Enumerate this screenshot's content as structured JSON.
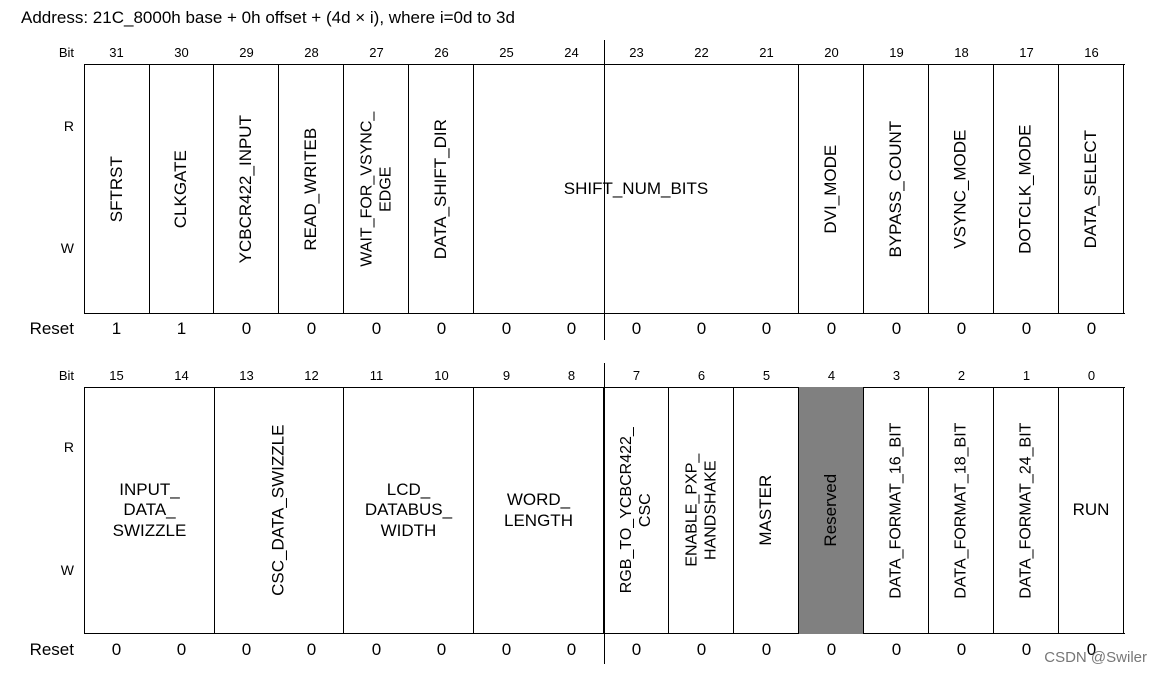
{
  "address": "Address: 21C_8000h base + 0h offset + (4d × i), where i=0d to 3d",
  "labels": {
    "bit": "Bit",
    "r": "R",
    "w": "W",
    "reset": "Reset"
  },
  "top": {
    "bits": [
      "31",
      "30",
      "29",
      "28",
      "27",
      "26",
      "25",
      "24",
      "23",
      "22",
      "21",
      "20",
      "19",
      "18",
      "17",
      "16"
    ],
    "fields": [
      {
        "name": "SFTRST",
        "span": 1,
        "rotated": true
      },
      {
        "name": "CLKGATE",
        "span": 1,
        "rotated": true
      },
      {
        "name": "YCBCR422_INPUT",
        "span": 1,
        "rotated": true
      },
      {
        "name": "READ_WRITEB",
        "span": 1,
        "rotated": true
      },
      {
        "name": "WAIT_FOR_VSYNC_\nEDGE",
        "span": 1,
        "rotated": true
      },
      {
        "name": "DATA_SHIFT_DIR",
        "span": 1,
        "rotated": true
      },
      {
        "name": "SHIFT_NUM_BITS",
        "span": 5,
        "rotated": false
      },
      {
        "name": "DVI_MODE",
        "span": 1,
        "rotated": true
      },
      {
        "name": "BYPASS_COUNT",
        "span": 1,
        "rotated": true
      },
      {
        "name": "VSYNC_MODE",
        "span": 1,
        "rotated": true
      },
      {
        "name": "DOTCLK_MODE",
        "span": 1,
        "rotated": true
      },
      {
        "name": "DATA_SELECT",
        "span": 1,
        "rotated": true
      }
    ],
    "reset": [
      "1",
      "1",
      "0",
      "0",
      "0",
      "0",
      "0",
      "0",
      "0",
      "0",
      "0",
      "0",
      "0",
      "0",
      "0",
      "0"
    ]
  },
  "bottom": {
    "bits": [
      "15",
      "14",
      "13",
      "12",
      "11",
      "10",
      "9",
      "8",
      "7",
      "6",
      "5",
      "4",
      "3",
      "2",
      "1",
      "0"
    ],
    "fields": [
      {
        "name": "INPUT_\nDATA_\nSWIZZLE",
        "span": 2,
        "rotated": false
      },
      {
        "name": "CSC_DATA_SWIZZLE",
        "span": 2,
        "rotated": true
      },
      {
        "name": "LCD_\nDATABUS_\nWIDTH",
        "span": 2,
        "rotated": false
      },
      {
        "name": "WORD_\nLENGTH",
        "span": 2,
        "rotated": false
      },
      {
        "name": "RGB_TO_YCBCR422_\nCSC",
        "span": 1,
        "rotated": true
      },
      {
        "name": "ENABLE_PXP_\nHANDSHAKE",
        "span": 1,
        "rotated": true
      },
      {
        "name": "MASTER",
        "span": 1,
        "rotated": true
      },
      {
        "name": "Reserved",
        "span": 1,
        "rotated": true,
        "reserved": true
      },
      {
        "name": "DATA_FORMAT_16_BIT",
        "span": 1,
        "rotated": true
      },
      {
        "name": "DATA_FORMAT_18_BIT",
        "span": 1,
        "rotated": true
      },
      {
        "name": "DATA_FORMAT_24_BIT",
        "span": 1,
        "rotated": true
      },
      {
        "name": "RUN",
        "span": 1,
        "rotated": false
      }
    ],
    "reset": [
      "0",
      "0",
      "0",
      "0",
      "0",
      "0",
      "0",
      "0",
      "0",
      "0",
      "0",
      "0",
      "0",
      "0",
      "0",
      "0"
    ]
  },
  "watermark": "CSDN @Swiler"
}
